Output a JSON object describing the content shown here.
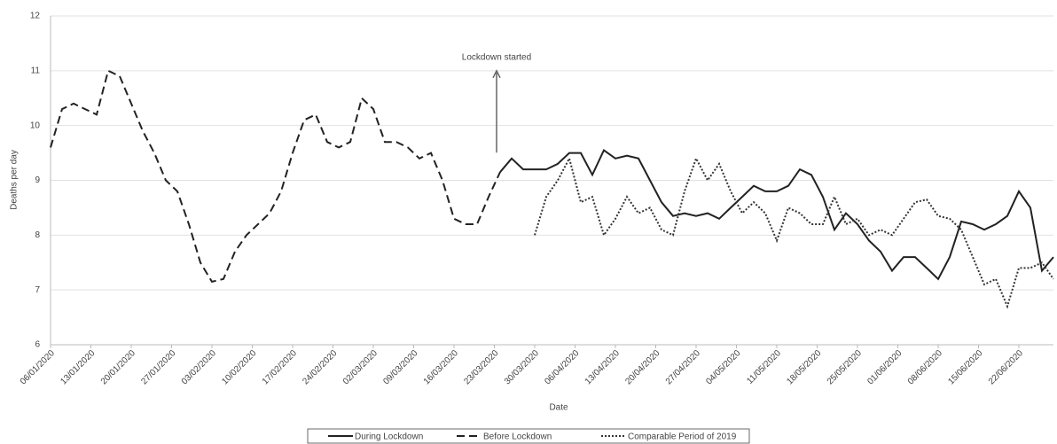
{
  "chart_data": {
    "type": "line",
    "y_label": "Deaths per day",
    "x_label": "Date",
    "annotation": "Lockdown started",
    "x": [
      "06/01/2020",
      "08/01/2020",
      "10/01/2020",
      "12/01/2020",
      "14/01/2020",
      "16/01/2020",
      "18/01/2020",
      "20/01/2020",
      "22/01/2020",
      "24/01/2020",
      "26/01/2020",
      "28/01/2020",
      "30/01/2020",
      "01/02/2020",
      "03/02/2020",
      "05/02/2020",
      "07/02/2020",
      "09/02/2020",
      "11/02/2020",
      "13/02/2020",
      "15/02/2020",
      "17/02/2020",
      "19/02/2020",
      "21/02/2020",
      "23/02/2020",
      "25/02/2020",
      "27/02/2020",
      "29/02/2020",
      "02/03/2020",
      "04/03/2020",
      "06/03/2020",
      "08/03/2020",
      "10/03/2020",
      "12/03/2020",
      "14/03/2020",
      "16/03/2020",
      "18/03/2020",
      "20/03/2020",
      "22/03/2020",
      "24/03/2020",
      "26/03/2020",
      "28/03/2020",
      "30/03/2020",
      "01/04/2020",
      "03/04/2020",
      "05/04/2020",
      "07/04/2020",
      "09/04/2020",
      "11/04/2020",
      "13/04/2020",
      "15/04/2020",
      "17/04/2020",
      "19/04/2020",
      "21/04/2020",
      "23/04/2020",
      "25/04/2020",
      "27/04/2020",
      "29/04/2020",
      "01/05/2020",
      "03/05/2020",
      "05/05/2020",
      "07/05/2020",
      "09/05/2020",
      "11/05/2020",
      "13/05/2020",
      "15/05/2020",
      "17/05/2020",
      "19/05/2020",
      "21/05/2020",
      "23/05/2020",
      "25/05/2020",
      "27/05/2020",
      "29/05/2020",
      "31/05/2020",
      "02/06/2020",
      "04/06/2020",
      "06/06/2020",
      "08/06/2020",
      "10/06/2020",
      "12/06/2020",
      "14/06/2020",
      "16/06/2020",
      "18/06/2020",
      "20/06/2020",
      "22/06/2020",
      "24/06/2020",
      "26/06/2020",
      "28/06/2020"
    ],
    "series": [
      {
        "name": "During Lockdown",
        "color": "#222222",
        "dash": "solid",
        "values": [
          null,
          null,
          null,
          null,
          null,
          null,
          null,
          null,
          null,
          null,
          null,
          null,
          null,
          null,
          null,
          null,
          null,
          null,
          null,
          null,
          null,
          null,
          null,
          null,
          null,
          null,
          null,
          null,
          null,
          null,
          null,
          null,
          null,
          null,
          null,
          null,
          null,
          null,
          null,
          9.15,
          9.4,
          9.2,
          9.2,
          9.2,
          9.3,
          9.5,
          9.5,
          9.1,
          9.55,
          9.4,
          9.45,
          9.4,
          9.0,
          8.6,
          8.35,
          8.4,
          8.35,
          8.4,
          8.3,
          8.5,
          8.7,
          8.9,
          8.8,
          8.8,
          8.9,
          9.2,
          9.1,
          8.7,
          8.1,
          8.4,
          8.2,
          7.9,
          7.7,
          7.35,
          7.6,
          7.6,
          7.4,
          7.2,
          7.6,
          8.25,
          8.2,
          8.1,
          8.2,
          8.35,
          8.8,
          8.5,
          7.35,
          7.6
        ]
      },
      {
        "name": "Before Lockdown",
        "color": "#222222",
        "dash": "dashed",
        "values": [
          9.6,
          10.3,
          10.4,
          10.3,
          10.2,
          11.0,
          10.9,
          10.4,
          9.9,
          9.5,
          9.0,
          8.8,
          8.2,
          7.5,
          7.15,
          7.2,
          7.7,
          8.0,
          8.2,
          8.4,
          8.8,
          9.5,
          10.1,
          10.2,
          9.7,
          9.6,
          9.7,
          10.5,
          10.3,
          9.7,
          9.7,
          9.6,
          9.4,
          9.5,
          9.0,
          8.3,
          8.2,
          8.2,
          8.7,
          9.15,
          null,
          null,
          null,
          null,
          null,
          null,
          null,
          null,
          null,
          null,
          null,
          null,
          null,
          null,
          null,
          null,
          null,
          null,
          null,
          null,
          null,
          null,
          null,
          null,
          null,
          null,
          null,
          null,
          null,
          null,
          null,
          null,
          null,
          null,
          null,
          null,
          null,
          null,
          null,
          null,
          null,
          null,
          null,
          null,
          null,
          null,
          null,
          null
        ]
      },
      {
        "name": "Comparable Period of 2019",
        "color": "#333333",
        "dash": "dotted",
        "values": [
          null,
          null,
          null,
          null,
          null,
          null,
          null,
          null,
          null,
          null,
          null,
          null,
          null,
          null,
          null,
          null,
          null,
          null,
          null,
          null,
          null,
          null,
          null,
          null,
          null,
          null,
          null,
          null,
          null,
          null,
          null,
          null,
          null,
          null,
          null,
          null,
          null,
          null,
          null,
          null,
          null,
          null,
          8.0,
          8.7,
          9.0,
          9.4,
          8.6,
          8.7,
          8.0,
          8.3,
          8.7,
          8.4,
          8.5,
          8.1,
          8.0,
          8.8,
          9.4,
          9.0,
          9.3,
          8.8,
          8.4,
          8.6,
          8.4,
          7.9,
          8.5,
          8.4,
          8.2,
          8.2,
          8.7,
          8.2,
          8.3,
          8.0,
          8.1,
          8.0,
          8.3,
          8.6,
          8.65,
          8.35,
          8.3,
          8.1,
          7.6,
          7.1,
          7.2,
          6.7,
          7.4,
          7.4,
          7.5,
          7.2
        ]
      }
    ],
    "xlim": [
      "06/01/2020",
      "28/06/2020"
    ],
    "xticks": [
      "06/01/2020",
      "13/01/2020",
      "20/01/2020",
      "27/01/2020",
      "03/02/2020",
      "10/02/2020",
      "17/02/2020",
      "24/02/2020",
      "02/03/2020",
      "09/03/2020",
      "16/03/2020",
      "23/03/2020",
      "30/03/2020",
      "06/04/2020",
      "13/04/2020",
      "20/04/2020",
      "27/04/2020",
      "04/05/2020",
      "11/05/2020",
      "18/05/2020",
      "25/05/2020",
      "01/06/2020",
      "08/06/2020",
      "15/06/2020",
      "22/06/2020"
    ],
    "ylim": [
      6,
      12
    ],
    "yticks": [
      6,
      7,
      8,
      9,
      10,
      11,
      12
    ],
    "grid": true,
    "legend": "bottom"
  }
}
